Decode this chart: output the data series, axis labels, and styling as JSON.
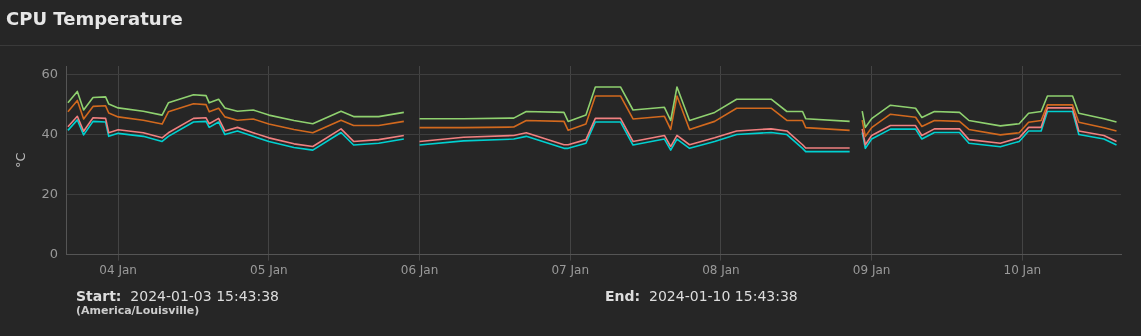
{
  "chart_data": {
    "type": "line",
    "title": "CPU Temperature",
    "ylabel": "°C",
    "x": [
      "2024-01-03T16:00",
      "2024-01-03T17:30",
      "2024-01-03T18:30",
      "2024-01-03T20:00",
      "2024-01-03T22:00",
      "2024-01-03T22:30",
      "2024-01-04T00:00",
      "2024-01-04T04:00",
      "2024-01-04T07:00",
      "2024-01-04T08:00",
      "2024-01-04T12:00",
      "2024-01-04T14:00",
      "2024-01-04T14:30",
      "2024-01-04T16:00",
      "2024-01-04T17:00",
      "2024-01-04T19:00",
      "2024-01-04T21:30",
      "2024-01-05T00:00",
      "2024-01-05T04:00",
      "2024-01-05T07:00",
      "2024-01-05T11:30",
      "2024-01-05T13:30",
      "2024-01-05T17:30",
      "2024-01-05T21:30",
      "2024-01-05T22:30",
      "2024-01-06T00:00",
      "2024-01-06T07:00",
      "2024-01-06T15:00",
      "2024-01-06T17:00",
      "2024-01-06T23:00",
      "2024-01-06T23:40",
      "2024-01-07T02:30",
      "2024-01-07T04:00",
      "2024-01-07T08:00",
      "2024-01-07T10:00",
      "2024-01-07T15:00",
      "2024-01-07T16:00",
      "2024-01-07T17:00",
      "2024-01-07T19:00",
      "2024-01-07T23:00",
      "2024-01-08T02:30",
      "2024-01-08T08:00",
      "2024-01-08T10:30",
      "2024-01-08T13:00",
      "2024-01-08T13:30",
      "2024-01-08T20:30",
      "2024-01-08T21:30",
      "2024-01-08T22:30",
      "2024-01-08T23:00",
      "2024-01-09T00:00",
      "2024-01-09T03:00",
      "2024-01-09T07:00",
      "2024-01-09T08:00",
      "2024-01-09T10:00",
      "2024-01-09T14:00",
      "2024-01-09T15:30",
      "2024-01-09T20:30",
      "2024-01-09T23:30",
      "2024-01-10T01:00",
      "2024-01-10T03:00",
      "2024-01-10T04:00",
      "2024-01-10T08:00",
      "2024-01-10T09:00",
      "2024-01-10T13:00",
      "2024-01-10T15:00"
    ],
    "series": [
      {
        "color": "#8fd16f",
        "values": [
          50.7,
          54.5,
          48.3,
          52.5,
          52.7,
          50.3,
          49,
          47.9,
          46.6,
          50.7,
          53.4,
          53.1,
          50.7,
          51.9,
          49,
          47.9,
          48.3,
          46.6,
          44.8,
          43.7,
          47.9,
          46.1,
          46.1,
          47.5,
          null,
          45.4,
          45.4,
          45.6,
          47.8,
          47.5,
          44.5,
          46.6,
          56,
          56,
          48.3,
          49.2,
          44.8,
          56,
          44.8,
          47.5,
          51.9,
          51.9,
          47.8,
          47.8,
          45.4,
          44.5,
          null,
          47.9,
          42.5,
          45.4,
          49.9,
          48.9,
          45.8,
          47.8,
          47.5,
          44.8,
          43,
          43.7,
          47.2,
          47.8,
          53,
          53,
          47.2,
          45.4,
          44.3
        ]
      },
      {
        "color": "#d2691e",
        "values": [
          47.7,
          51.5,
          45.3,
          49.5,
          49.7,
          47.3,
          46,
          44.9,
          43.6,
          47.7,
          50.4,
          50.1,
          47.7,
          48.9,
          46,
          44.9,
          45.3,
          43.6,
          41.8,
          40.7,
          44.9,
          43.1,
          43.1,
          44.5,
          null,
          42.4,
          42.4,
          42.6,
          44.8,
          44.5,
          41.5,
          43.6,
          53,
          53,
          45.3,
          46.2,
          41.8,
          53,
          41.8,
          44.5,
          48.9,
          48.9,
          44.8,
          44.8,
          42.4,
          41.5,
          null,
          44.9,
          39.5,
          42.4,
          46.9,
          45.9,
          42.8,
          44.8,
          44.5,
          41.8,
          40,
          40.7,
          44.2,
          44.8,
          50,
          50,
          44.2,
          42.4,
          41.3
        ]
      },
      {
        "color": "#f08080",
        "values": [
          42.7,
          46.2,
          41.2,
          45.7,
          45.5,
          40.7,
          41.7,
          40.7,
          39,
          40.7,
          45.5,
          45.7,
          43.7,
          45.5,
          41.3,
          42.5,
          40.7,
          39,
          37,
          36.1,
          42,
          37.8,
          38.4,
          39.8,
          null,
          37.8,
          39.2,
          39.8,
          40.7,
          36.7,
          36.7,
          38.4,
          45.5,
          45.5,
          37.8,
          39.8,
          36.1,
          39.8,
          36.7,
          39,
          41.3,
          42,
          41.3,
          36.7,
          35.6,
          35.6,
          null,
          42,
          36.7,
          39.8,
          43.1,
          43.1,
          39.8,
          42,
          42,
          38.4,
          37.2,
          39,
          42.5,
          42.5,
          49,
          49,
          41.3,
          39.8,
          37.8
        ]
      },
      {
        "color": "#00d0d0",
        "values": [
          41.5,
          45,
          40,
          44.5,
          44.3,
          39.5,
          40.5,
          39.5,
          37.8,
          39.5,
          44.3,
          44.5,
          42.5,
          44.3,
          40.1,
          41.3,
          39.5,
          37.8,
          35.8,
          34.9,
          40.8,
          36.6,
          37.2,
          38.6,
          null,
          36.6,
          38,
          38.6,
          39.5,
          35.5,
          35.5,
          37.2,
          44.3,
          44.3,
          36.6,
          38.6,
          34.9,
          38.6,
          35.5,
          37.8,
          40.1,
          40.8,
          40.1,
          35.5,
          34.4,
          34.4,
          null,
          40.8,
          35.5,
          38.6,
          41.9,
          41.9,
          38.6,
          40.8,
          40.8,
          37.2,
          36,
          37.8,
          41.3,
          41.3,
          47.8,
          47.8,
          40.1,
          38.6,
          36.6
        ]
      }
    ],
    "xlim": [
      "2024-01-03T15:43",
      "2024-01-10T15:43"
    ],
    "xticks": [
      {
        "value": "2024-01-04",
        "label": "04 Jan"
      },
      {
        "value": "2024-01-05",
        "label": "05 Jan"
      },
      {
        "value": "2024-01-06",
        "label": "06 Jan"
      },
      {
        "value": "2024-01-07",
        "label": "07 Jan"
      },
      {
        "value": "2024-01-08",
        "label": "08 Jan"
      },
      {
        "value": "2024-01-09",
        "label": "09 Jan"
      },
      {
        "value": "2024-01-10",
        "label": "10 Jan"
      }
    ],
    "ylim": [
      0,
      63
    ],
    "yticks": [
      0,
      20,
      40,
      60
    ],
    "grid": true,
    "legend": false,
    "annotations": [
      "Start:  2024-01-03 15:43:38",
      "(America/Louisville)",
      "End:  2024-01-10 15:43:38"
    ]
  }
}
